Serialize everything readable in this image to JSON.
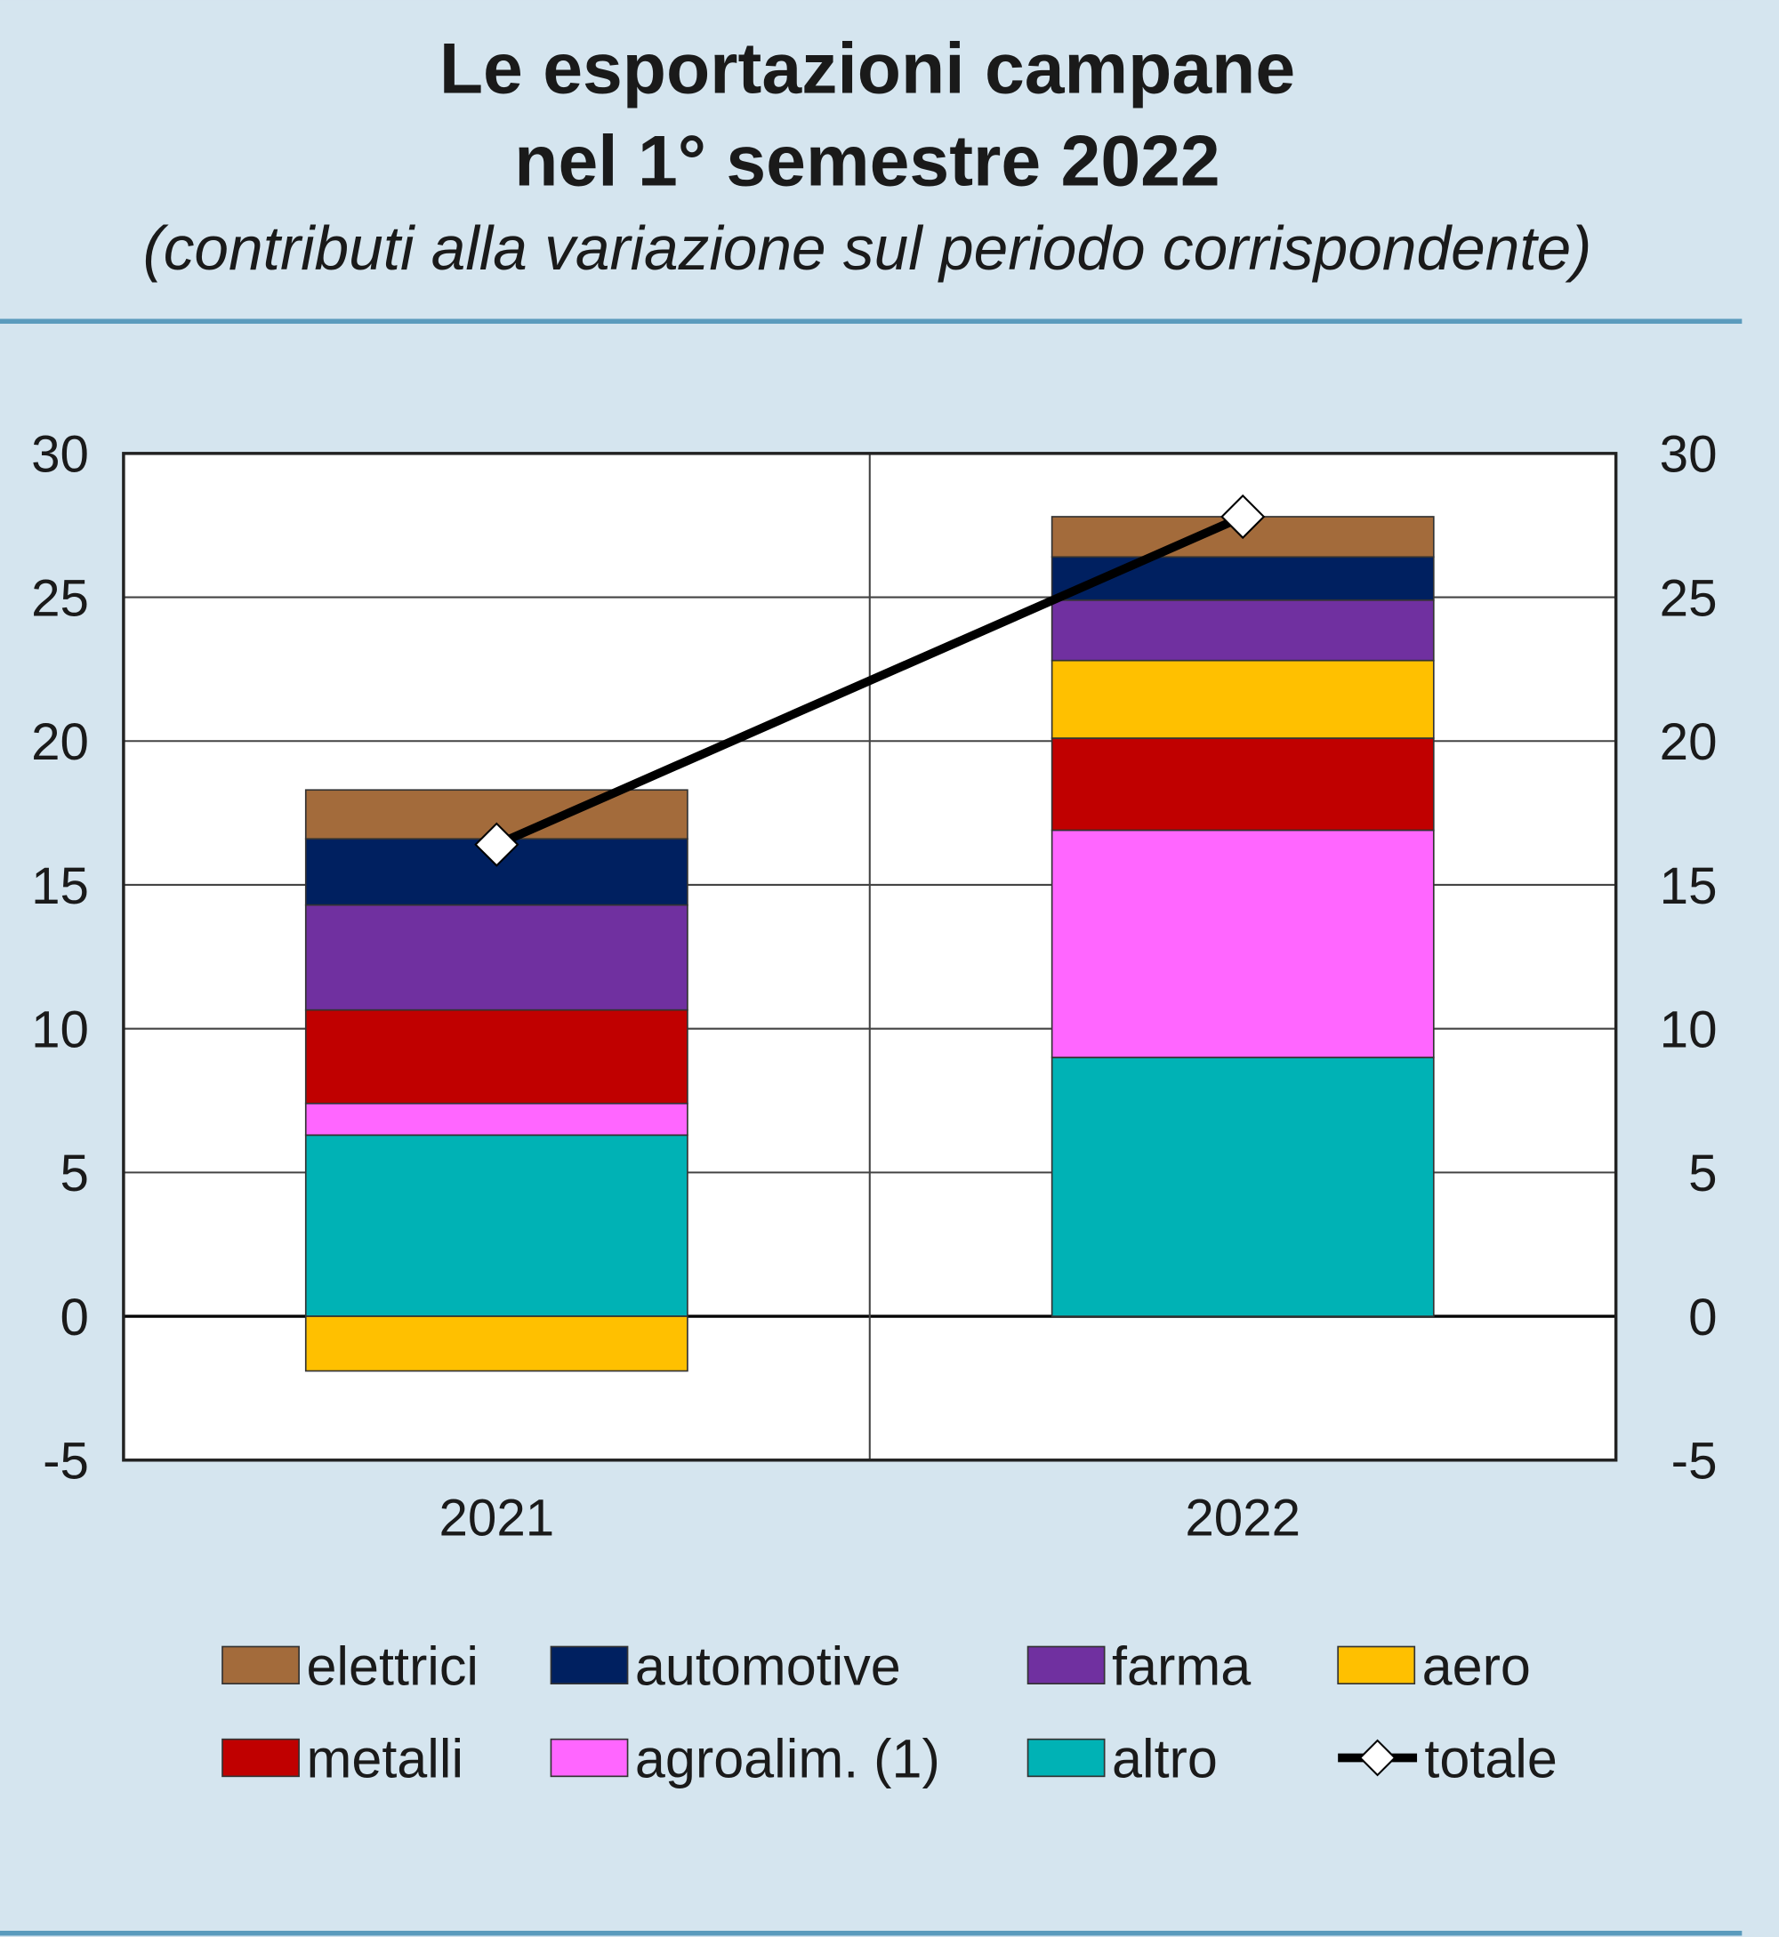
{
  "chart_data": {
    "type": "bar",
    "stacked": true,
    "title_line1": "Le esportazioni campane",
    "title_line2": "nel 1° semestre 2022",
    "subtitle": "(contributi alla variazione sul periodo corrispondente)",
    "categories": [
      "2021",
      "2022"
    ],
    "ylim": [
      -5,
      30
    ],
    "yticks": [
      "30",
      "25",
      "20",
      "15",
      "10",
      "5",
      "0",
      "-5"
    ],
    "grid": true,
    "legend_position": "bottom",
    "series": [
      {
        "name": "altro",
        "color": "#00b2b5",
        "values": [
          6.3,
          9.0
        ]
      },
      {
        "name": "agroalim. (1)",
        "color": "#ff66ff",
        "values": [
          1.1,
          7.9
        ]
      },
      {
        "name": "metalli",
        "color": "#c00000",
        "values": [
          3.25,
          3.2
        ]
      },
      {
        "name": "aero",
        "color": "#ffc000",
        "values": [
          -1.9,
          2.7
        ]
      },
      {
        "name": "farma",
        "color": "#7030a0",
        "values": [
          3.65,
          2.1
        ]
      },
      {
        "name": "automotive",
        "color": "#002060",
        "values": [
          2.3,
          1.5
        ]
      },
      {
        "name": "elettrici",
        "color": "#a36b3b",
        "values": [
          1.7,
          1.4
        ]
      }
    ],
    "line": {
      "name": "totale",
      "color": "#000000",
      "values": [
        16.4,
        27.8
      ]
    },
    "legend_order": [
      "elettrici",
      "automotive",
      "farma",
      "aero",
      "metalli",
      "agroalim. (1)",
      "altro",
      "totale"
    ]
  }
}
